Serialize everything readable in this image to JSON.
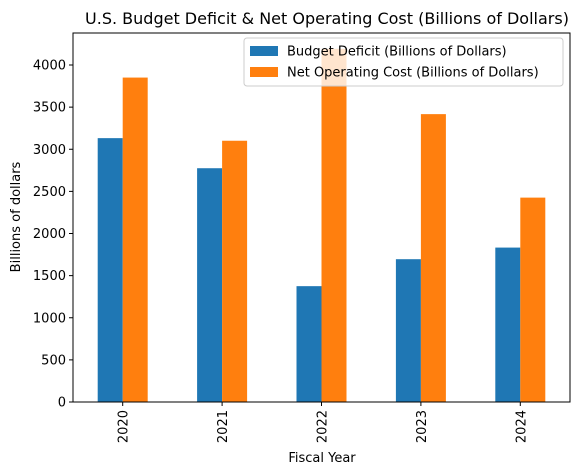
{
  "chart_data": {
    "type": "bar",
    "title": "U.S. Budget Deficit & Net Operating Cost (Billions of Dollars)",
    "xlabel": "Fiscal Year",
    "ylabel": "Billions of dollars",
    "categories": [
      "2020",
      "2021",
      "2022",
      "2023",
      "2024"
    ],
    "series": [
      {
        "name": "Budget Deficit (Billions of Dollars)",
        "color": "#1f77b4",
        "values": [
          3132,
          2775,
          1375,
          1695,
          1833
        ]
      },
      {
        "name": "Net Operating Cost (Billions of Dollars)",
        "color": "#ff7f0e",
        "values": [
          3851,
          3101,
          4192,
          3417,
          2426
        ]
      }
    ],
    "ylim": [
      0,
      4380
    ],
    "yticks": [
      0,
      500,
      1000,
      1500,
      2000,
      2500,
      3000,
      3500,
      4000
    ],
    "grid": false,
    "legend_position": "top-right"
  }
}
